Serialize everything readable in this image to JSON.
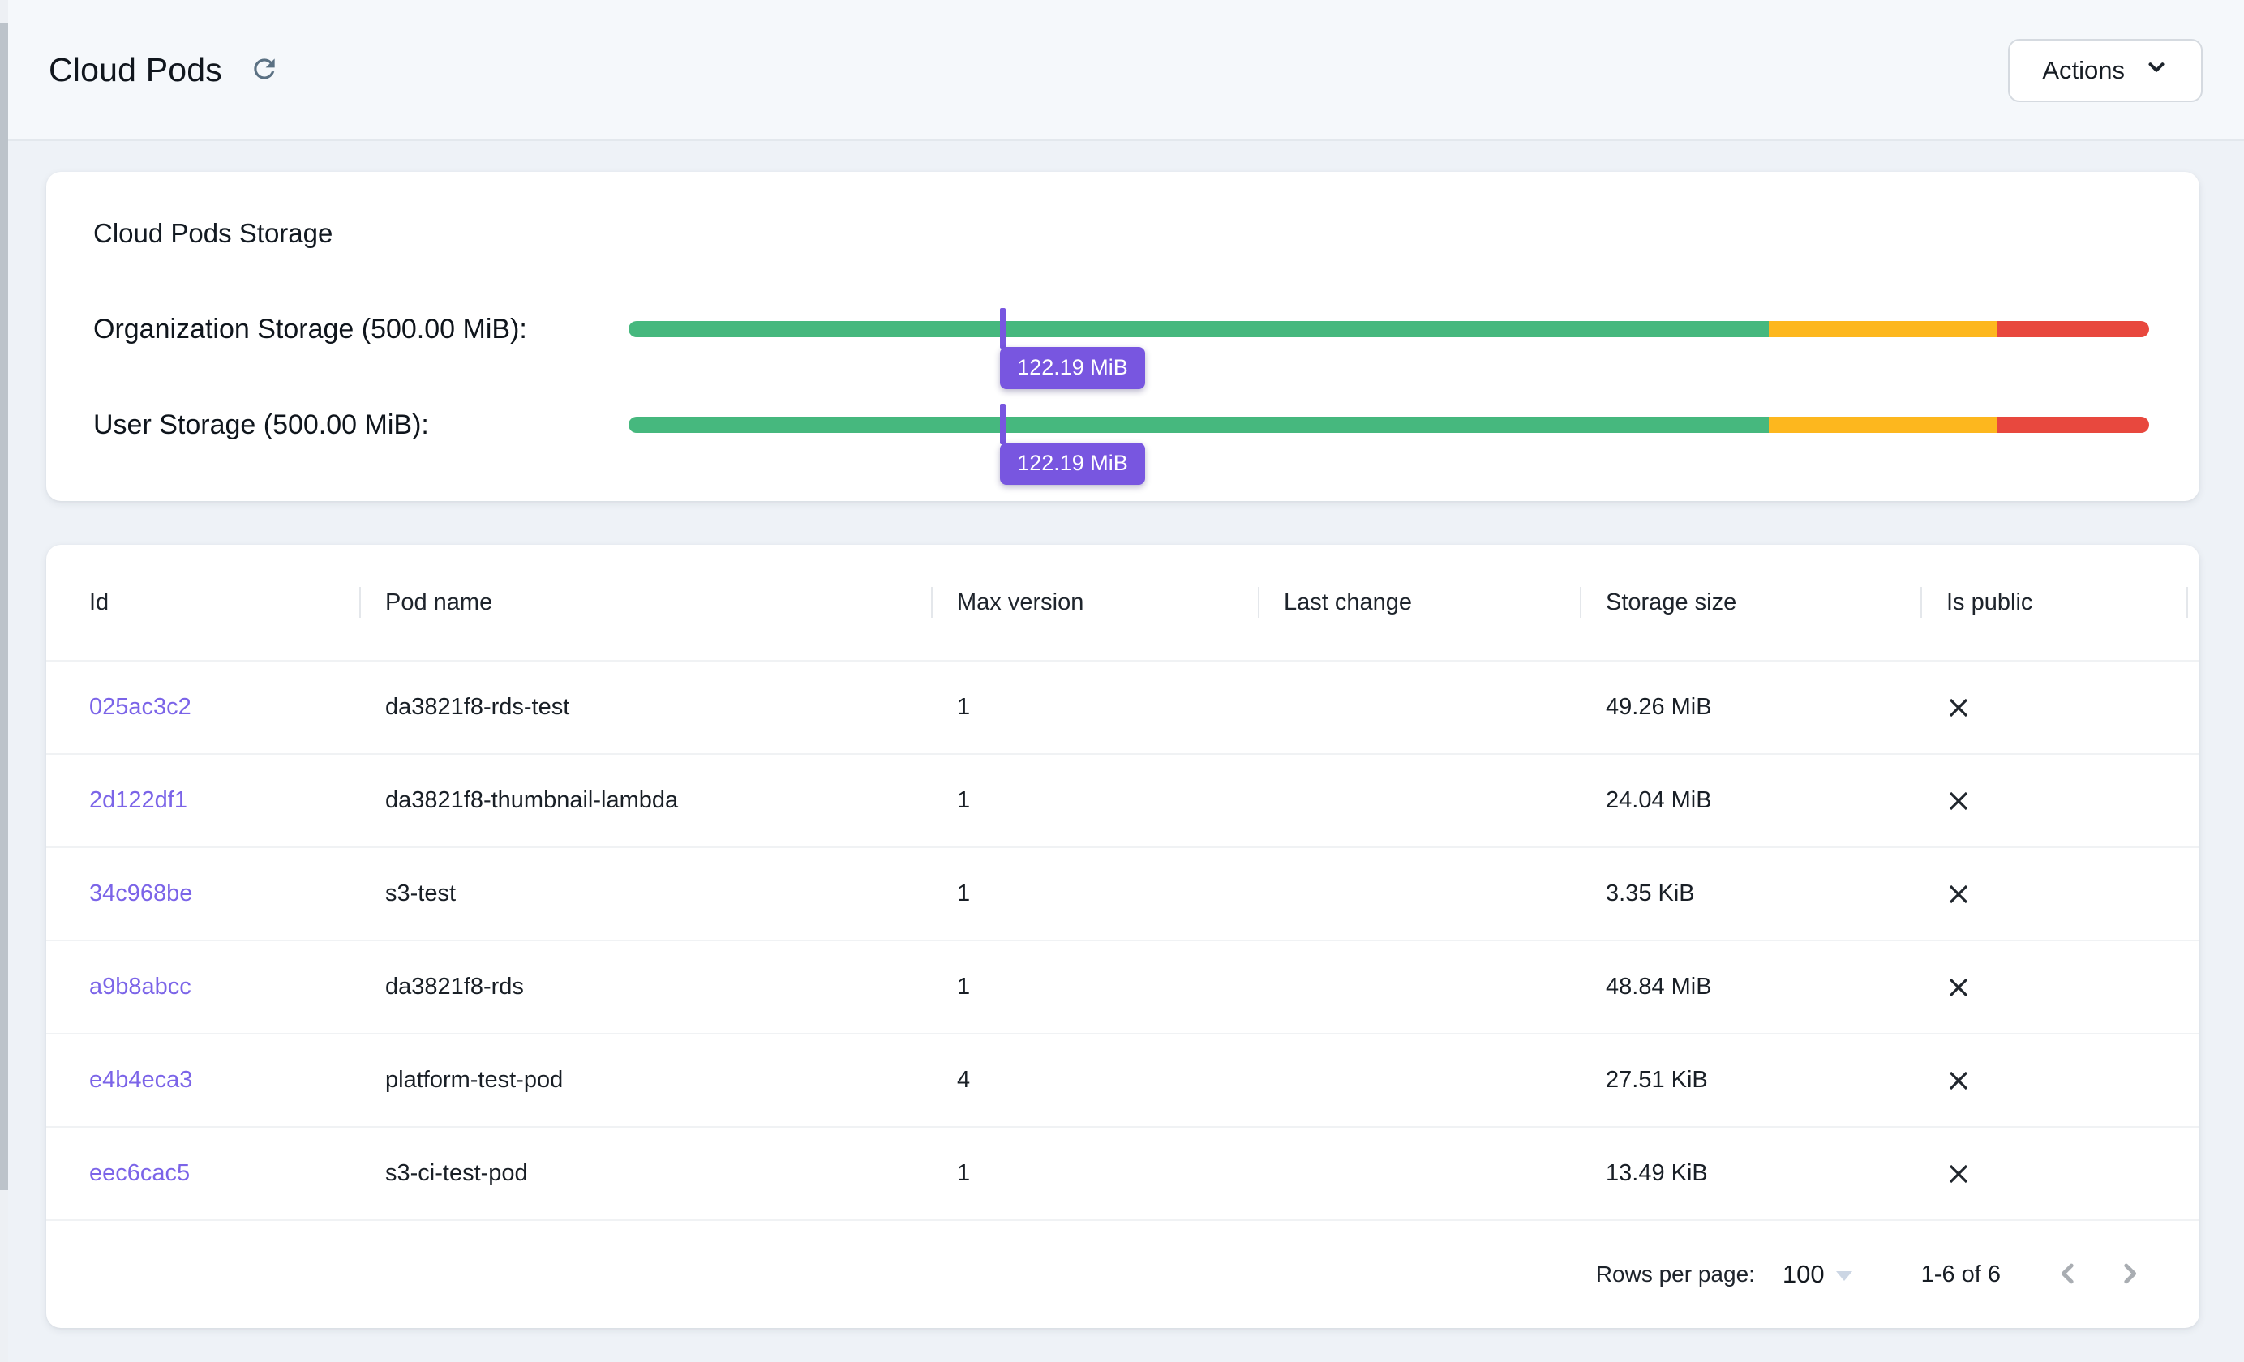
{
  "header": {
    "title": "Cloud Pods",
    "refresh_icon": "refresh-icon",
    "actions_button": {
      "label": "Actions",
      "icon": "chevron-down-icon"
    }
  },
  "storage": {
    "card_title": "Cloud Pods Storage",
    "rows": [
      {
        "label": "Organization Storage (500.00 MiB):",
        "tooltip": "122.19 MiB",
        "used_mib": 122.19,
        "limit_mib": 500.0
      },
      {
        "label": "User Storage (500.00 MiB):",
        "tooltip": "122.19 MiB",
        "used_mib": 122.19,
        "limit_mib": 500.0
      }
    ],
    "segments": [
      {
        "name": "safe",
        "pct": 75,
        "color": "#46b87e"
      },
      {
        "name": "warning",
        "pct": 15,
        "color": "#fdb71e"
      },
      {
        "name": "critical",
        "pct": 10,
        "color": "#e8483e"
      }
    ],
    "marker_color": "#7856e0"
  },
  "table": {
    "columns": [
      "Id",
      "Pod name",
      "Max version",
      "Last change",
      "Storage size",
      "Is public"
    ],
    "rows": [
      {
        "id": "025ac3c2",
        "pod_name": "da3821f8-rds-test",
        "max_version": "1",
        "last_change": "",
        "storage_size": "49.26 MiB",
        "is_public": false
      },
      {
        "id": "2d122df1",
        "pod_name": "da3821f8-thumbnail-lambda",
        "max_version": "1",
        "last_change": "",
        "storage_size": "24.04 MiB",
        "is_public": false
      },
      {
        "id": "34c968be",
        "pod_name": "s3-test",
        "max_version": "1",
        "last_change": "",
        "storage_size": "3.35 KiB",
        "is_public": false
      },
      {
        "id": "a9b8abcc",
        "pod_name": "da3821f8-rds",
        "max_version": "1",
        "last_change": "",
        "storage_size": "48.84 MiB",
        "is_public": false
      },
      {
        "id": "e4b4eca3",
        "pod_name": "platform-test-pod",
        "max_version": "4",
        "last_change": "",
        "storage_size": "27.51 KiB",
        "is_public": false
      },
      {
        "id": "eec6cac5",
        "pod_name": "s3-ci-test-pod",
        "max_version": "1",
        "last_change": "",
        "storage_size": "13.49 KiB",
        "is_public": false
      }
    ],
    "is_public_false_icon": "close-icon",
    "pagination": {
      "rows_per_page_label": "Rows per page:",
      "rows_per_page_value": "100",
      "range_label": "1-6 of 6",
      "prev_icon": "chevron-left-icon",
      "next_icon": "chevron-right-icon"
    }
  },
  "colors": {
    "link": "#7b64e8",
    "marker": "#7856e0",
    "bar_green": "#46b87e",
    "bar_amber": "#fdb71e",
    "bar_red": "#e8483e",
    "page_bg": "#eef2f7",
    "header_bg": "#f5f8fb"
  }
}
